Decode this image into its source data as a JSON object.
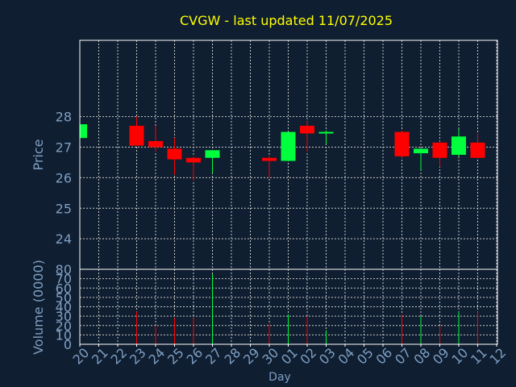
{
  "title": "CVGW - last updated 11/07/2025",
  "colors": {
    "background": "#0f1e30",
    "title": "#ffff00",
    "axis_text": "#7f9fc3",
    "frame": "#ffffff",
    "grid": "#c8c8c8",
    "up": "#00ff3c",
    "down": "#ff0000"
  },
  "chart_data": [
    {
      "type": "candlestick",
      "ylabel": "Price",
      "ylim": [
        23,
        30.5
      ],
      "yticks": [
        24,
        25,
        26,
        27,
        28
      ],
      "grid": true,
      "x_tick_labels": [
        "20",
        "21",
        "22",
        "23",
        "24",
        "25",
        "26",
        "27",
        "28",
        "29",
        "30",
        "01",
        "02",
        "03",
        "04",
        "05",
        "06",
        "07",
        "08",
        "09",
        "10",
        "11",
        "12"
      ],
      "candles": [
        {
          "day": "20",
          "open": 27.3,
          "high": 27.75,
          "low": 27.3,
          "close": 27.75
        },
        {
          "day": "23",
          "open": 27.7,
          "high": 28.0,
          "low": 27.05,
          "close": 27.05
        },
        {
          "day": "24",
          "open": 27.2,
          "high": 27.7,
          "low": 26.85,
          "close": 27.0
        },
        {
          "day": "25",
          "open": 26.95,
          "high": 27.3,
          "low": 26.1,
          "close": 26.6
        },
        {
          "day": "26",
          "open": 26.65,
          "high": 26.7,
          "low": 25.9,
          "close": 26.5
        },
        {
          "day": "27",
          "open": 26.65,
          "high": 26.9,
          "low": 26.15,
          "close": 26.9
        },
        {
          "day": "30",
          "open": 26.65,
          "high": 26.7,
          "low": 26.0,
          "close": 26.55
        },
        {
          "day": "01",
          "open": 26.55,
          "high": 27.5,
          "low": 26.55,
          "close": 27.5
        },
        {
          "day": "02",
          "open": 27.7,
          "high": 27.85,
          "low": 26.85,
          "close": 27.45
        },
        {
          "day": "03",
          "open": 27.45,
          "high": 27.55,
          "low": 27.1,
          "close": 27.5
        },
        {
          "day": "07",
          "open": 27.5,
          "high": 27.55,
          "low": 26.65,
          "close": 26.7
        },
        {
          "day": "08",
          "open": 26.8,
          "high": 26.95,
          "low": 26.25,
          "close": 26.95
        },
        {
          "day": "09",
          "open": 27.15,
          "high": 27.2,
          "low": 26.35,
          "close": 26.65
        },
        {
          "day": "10",
          "open": 26.75,
          "high": 27.6,
          "low": 26.7,
          "close": 27.35
        },
        {
          "day": "11",
          "open": 27.15,
          "high": 27.45,
          "low": 26.65,
          "close": 26.65
        }
      ]
    },
    {
      "type": "bar",
      "ylabel": "Volume (0000)",
      "xlabel": "Day",
      "ylim": [
        0,
        80
      ],
      "yticks": [
        0,
        10,
        20,
        30,
        40,
        50,
        60,
        70,
        80
      ],
      "grid": true,
      "volumes": [
        {
          "day": "20",
          "value": 0,
          "dir": "up"
        },
        {
          "day": "23",
          "value": 35,
          "dir": "down"
        },
        {
          "day": "24",
          "value": 20,
          "dir": "down"
        },
        {
          "day": "25",
          "value": 28,
          "dir": "down"
        },
        {
          "day": "26",
          "value": 28,
          "dir": "down"
        },
        {
          "day": "27",
          "value": 75,
          "dir": "up"
        },
        {
          "day": "30",
          "value": 22,
          "dir": "down"
        },
        {
          "day": "01",
          "value": 32,
          "dir": "up"
        },
        {
          "day": "02",
          "value": 30,
          "dir": "down"
        },
        {
          "day": "03",
          "value": 15,
          "dir": "up"
        },
        {
          "day": "07",
          "value": 32,
          "dir": "down"
        },
        {
          "day": "08",
          "value": 30,
          "dir": "up"
        },
        {
          "day": "09",
          "value": 20,
          "dir": "down"
        },
        {
          "day": "10",
          "value": 35,
          "dir": "up"
        },
        {
          "day": "11",
          "value": 35,
          "dir": "down"
        }
      ]
    }
  ]
}
